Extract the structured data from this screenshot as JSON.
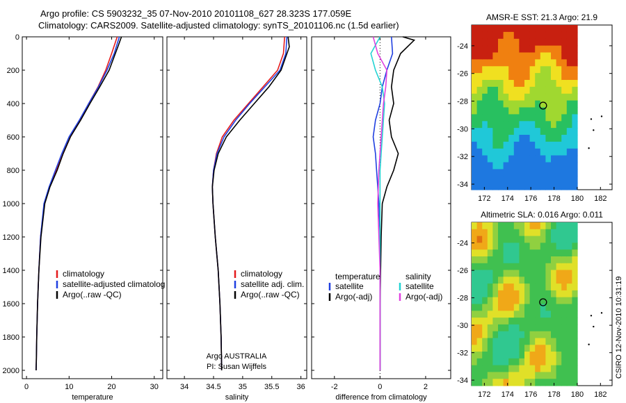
{
  "title": {
    "line1": "Argo profile: CS 5903232_35 07-Nov-2010 20101108_627 28.323S 177.059E",
    "line2": "Climatology: CARS2009. Satellite-adjusted climatology: synTS_20101106.nc (1.5d earlier)"
  },
  "credit": "CSIRO 12-Nov-2010 10:31:19",
  "colors": {
    "clim": "#e41a1c",
    "sat": "#1f3fe0",
    "argo": "#000000",
    "sat_sal": "#22d3d3",
    "argo_sal": "#e040e0"
  },
  "chart_data": [
    {
      "type": "line",
      "id": "temperature",
      "xlabel": "temperature",
      "ylabel": "",
      "xlim": [
        -1,
        32
      ],
      "ylim": [
        2050,
        0
      ],
      "xticks": [
        0,
        10,
        20,
        30
      ],
      "yticks": [
        0,
        200,
        400,
        600,
        800,
        1000,
        1200,
        1400,
        1600,
        1800,
        2000
      ],
      "legend": [
        "climatology",
        "satellite-adjusted climatolog",
        "Argo(..raw -QC)"
      ],
      "series": [
        {
          "name": "climatology",
          "color": "clim",
          "x": [
            21.3,
            20.0,
            18.6,
            16.8,
            14.6,
            12.6,
            10.3,
            8.6,
            7.0,
            5.4,
            4.2,
            3.3,
            2.9,
            2.6,
            2.4,
            2.3,
            2.25
          ],
          "y": [
            0,
            100,
            200,
            300,
            400,
            500,
            600,
            700,
            800,
            900,
            1000,
            1200,
            1400,
            1600,
            1800,
            1950,
            2000
          ]
        },
        {
          "name": "satellite-adjusted climatology",
          "color": "sat",
          "x": [
            21.8,
            20.6,
            18.9,
            16.9,
            14.6,
            12.4,
            10.0,
            8.3,
            6.8,
            5.3,
            4.1,
            3.3,
            2.9,
            2.6,
            2.4,
            2.3,
            2.25
          ],
          "y": [
            0,
            100,
            200,
            300,
            400,
            500,
            600,
            700,
            800,
            900,
            1000,
            1200,
            1400,
            1600,
            1800,
            1950,
            2000
          ]
        },
        {
          "name": "Argo(..raw -QC)",
          "color": "argo",
          "x": [
            22.3,
            21.6,
            19.4,
            17.2,
            14.9,
            12.7,
            10.3,
            8.6,
            7.2,
            5.5,
            4.3,
            3.4,
            2.9,
            2.6,
            2.4,
            2.3,
            2.25
          ],
          "y": [
            0,
            50,
            200,
            300,
            400,
            500,
            600,
            700,
            800,
            900,
            1000,
            1200,
            1400,
            1600,
            1800,
            1950,
            2000
          ]
        }
      ]
    },
    {
      "type": "line",
      "id": "salinity",
      "xlabel": "salinity",
      "xlim": [
        33.7,
        36.1
      ],
      "ylim": [
        2050,
        0
      ],
      "xticks": [
        34,
        34.5,
        35,
        35.5,
        36
      ],
      "xticklabels": [
        "34",
        "34.5",
        "35",
        "35.5",
        "36"
      ],
      "legend": [
        "climatology",
        "satellite adj. clim.",
        "Argo(..raw -QC)"
      ],
      "annotation": [
        "Argo AUSTRALIA",
        "PI: Susan Wijffels"
      ],
      "series": [
        {
          "name": "climatology",
          "color": "clim",
          "x": [
            35.72,
            35.7,
            35.6,
            35.35,
            35.1,
            34.85,
            34.65,
            34.55,
            34.5,
            34.48,
            34.49,
            34.53,
            34.58,
            34.61,
            34.63,
            34.64
          ],
          "y": [
            0,
            100,
            200,
            300,
            400,
            500,
            600,
            700,
            800,
            900,
            1000,
            1200,
            1400,
            1600,
            1800,
            2000
          ]
        },
        {
          "name": "satellite adj. clim.",
          "color": "sat",
          "x": [
            35.76,
            35.74,
            35.64,
            35.38,
            35.12,
            34.88,
            34.68,
            34.56,
            34.5,
            34.48,
            34.49,
            34.53,
            34.58,
            34.61,
            34.63,
            34.64
          ],
          "y": [
            0,
            100,
            200,
            300,
            400,
            500,
            600,
            700,
            800,
            900,
            1000,
            1200,
            1400,
            1600,
            1800,
            2000
          ]
        },
        {
          "name": "Argo(..raw -QC)",
          "color": "argo",
          "x": [
            35.78,
            35.8,
            35.66,
            35.45,
            35.2,
            34.95,
            34.72,
            34.58,
            34.51,
            34.48,
            34.49,
            34.53,
            34.58,
            34.61,
            34.63,
            34.64
          ],
          "y": [
            0,
            60,
            200,
            300,
            400,
            500,
            600,
            700,
            800,
            900,
            1000,
            1200,
            1400,
            1600,
            1800,
            2000
          ]
        }
      ]
    },
    {
      "type": "line",
      "id": "difference",
      "xlabel": "difference from climatology",
      "xlim": [
        -3,
        3.1
      ],
      "ylim": [
        2050,
        0
      ],
      "xticks": [
        -2,
        0,
        2
      ],
      "legend_left_title": "temperature",
      "legend_left": [
        "satellite",
        "Argo(-adj)"
      ],
      "legend_right_title": "salinity",
      "legend_right": [
        "satellite",
        "Argo(-adj)"
      ],
      "series": [
        {
          "name": "temperature satellite",
          "color": "sat",
          "x": [
            0.5,
            0.55,
            0.3,
            0.1,
            0.0,
            -0.2,
            -0.3,
            -0.2,
            -0.15,
            -0.1,
            -0.05,
            0.0,
            0.0,
            0.0,
            0.0
          ],
          "y": [
            0,
            100,
            200,
            300,
            400,
            500,
            600,
            700,
            800,
            900,
            1000,
            1200,
            1400,
            1600,
            2000
          ]
        },
        {
          "name": "temperature Argo(-adj)",
          "color": "argo",
          "x": [
            1.0,
            1.5,
            0.9,
            0.6,
            0.5,
            0.6,
            0.4,
            0.5,
            0.8,
            0.6,
            0.3,
            0.1,
            0.05,
            0.0,
            0.0
          ],
          "y": [
            0,
            20,
            100,
            200,
            300,
            400,
            500,
            600,
            700,
            800,
            900,
            1000,
            1200,
            1600,
            2000
          ]
        },
        {
          "name": "salinity satellite",
          "color": "sat_sal",
          "x": [
            0.0,
            -0.4,
            -0.2,
            0.1,
            0.2,
            0.1,
            0.0,
            0.0,
            0.0,
            0.0
          ],
          "y": [
            0,
            100,
            200,
            300,
            400,
            600,
            800,
            1000,
            1400,
            2000
          ]
        },
        {
          "name": "salinity Argo(-adj)",
          "color": "argo_sal",
          "x": [
            -0.3,
            -0.1,
            0.3,
            0.25,
            0.15,
            0.05,
            -0.05,
            -0.1,
            0.0,
            0.0
          ],
          "y": [
            0,
            100,
            200,
            300,
            400,
            600,
            800,
            1000,
            1400,
            2000
          ]
        }
      ]
    },
    {
      "type": "heatmap",
      "id": "sst_map",
      "title": "AMSR-E SST: 21.3 Argo: 21.9",
      "xticks": [
        172,
        174,
        176,
        178,
        180,
        182
      ],
      "yticks": [
        -24,
        -26,
        -28,
        -30,
        -32,
        -34
      ],
      "argo_position": [
        177.059,
        -28.323
      ]
    },
    {
      "type": "heatmap",
      "id": "sla_map",
      "title": "Altimetric SLA: 0.016 Argo: 0.011",
      "xticks": [
        172,
        174,
        176,
        178,
        180,
        182
      ],
      "yticks": [
        -24,
        -26,
        -28,
        -30,
        -32,
        -34
      ],
      "argo_position": [
        177.059,
        -28.323
      ]
    }
  ]
}
